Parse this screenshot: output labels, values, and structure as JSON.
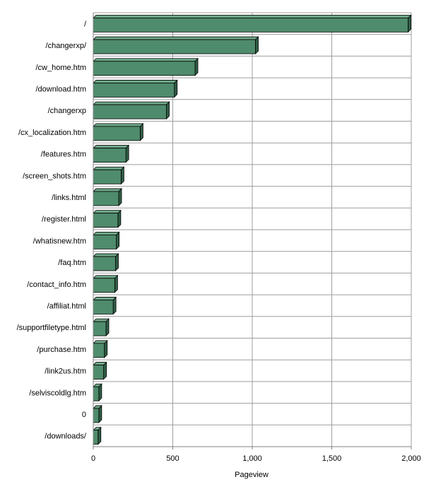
{
  "chart_data": {
    "type": "bar",
    "orientation": "horizontal",
    "categories": [
      "/",
      "/changerxp/",
      "/cw_home.htm",
      "/download.htm",
      "/changerxp",
      "/cx_localization.htm",
      "/features.htm",
      "/screen_shots.htm",
      "/links.html",
      "/register.html",
      "/whatisnew.htm",
      "/faq.htm",
      "/contact_info.htm",
      "/affiliat.html",
      "/supportfiletype.html",
      "/purchase.htm",
      "/link2us.htm",
      "/selviscoldlg.htm",
      "0",
      "/downloads/"
    ],
    "values": [
      1980,
      1020,
      640,
      510,
      460,
      295,
      205,
      175,
      160,
      155,
      145,
      140,
      135,
      125,
      80,
      70,
      65,
      35,
      35,
      30
    ],
    "xlabel": "Pageview",
    "ylabel": "",
    "title": "",
    "xlim": [
      0,
      2000
    ],
    "xticks": [
      {
        "value": 0,
        "label": "0"
      },
      {
        "value": 500,
        "label": "500"
      },
      {
        "value": 1000,
        "label": "1,000"
      },
      {
        "value": 1500,
        "label": "1,500"
      },
      {
        "value": 2000,
        "label": "2,000"
      }
    ],
    "grid": true,
    "legend": "none",
    "bar_style": "3d",
    "colors": {
      "bar_front": "#4f8b6d",
      "bar_top": "#6fa889",
      "bar_side": "#2f5f46",
      "bar_outline": "#000000",
      "grid": "#9e9e9e",
      "axis": "#808080",
      "background": "#ffffff"
    }
  }
}
